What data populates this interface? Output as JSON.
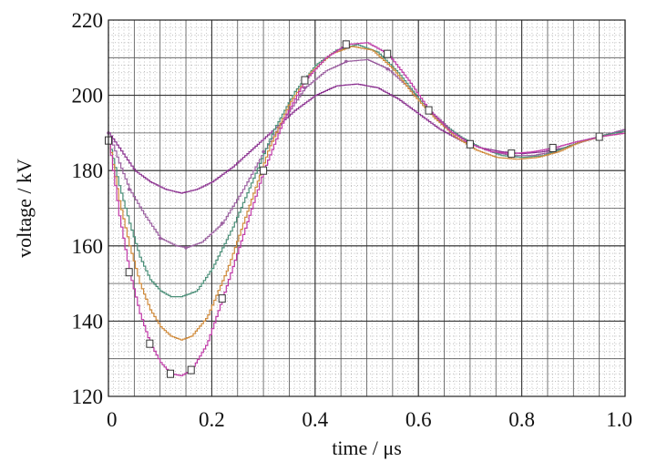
{
  "chart_data": {
    "type": "line",
    "title": "",
    "xlabel": "time / μs",
    "ylabel": "voltage / kV",
    "xlim": [
      0,
      1.0
    ],
    "ylim": [
      120,
      220
    ],
    "x_ticks": [
      0,
      0.2,
      0.4,
      0.6,
      0.8,
      1.0
    ],
    "x_tick_labels": [
      "0",
      "0.2",
      "0.4",
      "0.6",
      "0.8",
      "1.0"
    ],
    "y_ticks": [
      120,
      140,
      160,
      180,
      200,
      220
    ],
    "y_tick_labels": [
      "120",
      "140",
      "160",
      "180",
      "200",
      "220"
    ],
    "grid": true,
    "legend": "none",
    "series": [
      {
        "color": "#8a2f8f",
        "marker": "none",
        "points": [
          [
            0,
            190
          ],
          [
            0.02,
            186
          ],
          [
            0.05,
            180
          ],
          [
            0.08,
            177
          ],
          [
            0.11,
            175
          ],
          [
            0.14,
            174
          ],
          [
            0.17,
            175
          ],
          [
            0.2,
            177
          ],
          [
            0.24,
            181
          ],
          [
            0.28,
            186
          ],
          [
            0.32,
            191
          ],
          [
            0.36,
            196
          ],
          [
            0.4,
            200
          ],
          [
            0.44,
            202.5
          ],
          [
            0.48,
            203
          ],
          [
            0.52,
            202
          ],
          [
            0.56,
            199
          ],
          [
            0.6,
            195
          ],
          [
            0.64,
            191
          ],
          [
            0.68,
            188
          ],
          [
            0.72,
            186
          ],
          [
            0.76,
            185
          ],
          [
            0.8,
            184.5
          ],
          [
            0.84,
            185
          ],
          [
            0.88,
            186
          ],
          [
            0.92,
            188
          ],
          [
            0.96,
            189.5
          ],
          [
            1.0,
            191
          ]
        ]
      },
      {
        "color": "#9b5fa0",
        "marker": "dot",
        "points": [
          [
            0,
            190
          ],
          [
            0.02,
            182
          ],
          [
            0.04,
            175
          ],
          [
            0.07,
            168
          ],
          [
            0.1,
            162
          ],
          [
            0.13,
            160
          ],
          [
            0.15,
            159.5
          ],
          [
            0.18,
            161
          ],
          [
            0.22,
            166
          ],
          [
            0.26,
            175
          ],
          [
            0.3,
            185
          ],
          [
            0.34,
            194
          ],
          [
            0.38,
            202
          ],
          [
            0.42,
            206.5
          ],
          [
            0.46,
            209
          ],
          [
            0.5,
            209.5
          ],
          [
            0.54,
            207
          ],
          [
            0.58,
            202
          ],
          [
            0.62,
            196
          ],
          [
            0.66,
            191
          ],
          [
            0.7,
            187
          ],
          [
            0.74,
            185
          ],
          [
            0.78,
            184
          ],
          [
            0.82,
            184
          ],
          [
            0.86,
            185
          ],
          [
            0.9,
            187
          ],
          [
            0.95,
            189
          ],
          [
            1.0,
            191
          ]
        ]
      },
      {
        "color": "#4a8f78",
        "marker": "none",
        "points": [
          [
            0,
            188
          ],
          [
            0.02,
            176
          ],
          [
            0.04,
            166
          ],
          [
            0.06,
            157
          ],
          [
            0.08,
            151
          ],
          [
            0.1,
            148
          ],
          [
            0.12,
            146.5
          ],
          [
            0.14,
            146.5
          ],
          [
            0.17,
            148
          ],
          [
            0.2,
            154
          ],
          [
            0.24,
            165
          ],
          [
            0.28,
            178
          ],
          [
            0.32,
            191
          ],
          [
            0.36,
            201
          ],
          [
            0.4,
            208
          ],
          [
            0.44,
            212
          ],
          [
            0.48,
            213.5
          ],
          [
            0.52,
            211.5
          ],
          [
            0.56,
            206
          ],
          [
            0.6,
            199
          ],
          [
            0.64,
            193
          ],
          [
            0.68,
            189
          ],
          [
            0.72,
            186
          ],
          [
            0.76,
            184
          ],
          [
            0.8,
            183.5
          ],
          [
            0.84,
            184
          ],
          [
            0.88,
            186
          ],
          [
            0.92,
            188
          ],
          [
            0.96,
            189.5
          ],
          [
            1.0,
            190.5
          ]
        ]
      },
      {
        "color": "#d08a3a",
        "marker": "none",
        "points": [
          [
            0,
            188
          ],
          [
            0.02,
            172
          ],
          [
            0.04,
            160
          ],
          [
            0.06,
            150
          ],
          [
            0.08,
            143
          ],
          [
            0.1,
            138.5
          ],
          [
            0.12,
            136
          ],
          [
            0.14,
            135
          ],
          [
            0.16,
            136
          ],
          [
            0.19,
            141
          ],
          [
            0.23,
            154
          ],
          [
            0.27,
            170
          ],
          [
            0.31,
            186
          ],
          [
            0.35,
            198
          ],
          [
            0.39,
            206
          ],
          [
            0.43,
            211
          ],
          [
            0.47,
            213
          ],
          [
            0.51,
            212
          ],
          [
            0.55,
            207
          ],
          [
            0.59,
            200
          ],
          [
            0.63,
            194
          ],
          [
            0.67,
            189
          ],
          [
            0.71,
            185.5
          ],
          [
            0.75,
            183.5
          ],
          [
            0.79,
            183
          ],
          [
            0.83,
            183.5
          ],
          [
            0.87,
            185
          ],
          [
            0.91,
            187.5
          ],
          [
            0.95,
            189
          ],
          [
            1.0,
            190
          ]
        ]
      },
      {
        "color": "#c03aa8",
        "marker": "square",
        "points": [
          [
            0,
            188
          ],
          [
            0.02,
            168
          ],
          [
            0.04,
            153
          ],
          [
            0.06,
            142
          ],
          [
            0.08,
            134
          ],
          [
            0.1,
            129
          ],
          [
            0.12,
            126
          ],
          [
            0.14,
            125.5
          ],
          [
            0.16,
            127
          ],
          [
            0.19,
            134
          ],
          [
            0.22,
            146
          ],
          [
            0.26,
            163
          ],
          [
            0.3,
            180
          ],
          [
            0.34,
            194
          ],
          [
            0.38,
            204
          ],
          [
            0.42,
            210
          ],
          [
            0.46,
            213.5
          ],
          [
            0.5,
            214
          ],
          [
            0.54,
            211
          ],
          [
            0.58,
            204
          ],
          [
            0.62,
            196
          ],
          [
            0.66,
            190.5
          ],
          [
            0.7,
            187
          ],
          [
            0.74,
            185
          ],
          [
            0.78,
            184.5
          ],
          [
            0.82,
            185
          ],
          [
            0.86,
            186
          ],
          [
            0.9,
            187.5
          ],
          [
            0.95,
            189
          ],
          [
            1.0,
            190
          ]
        ]
      }
    ]
  }
}
